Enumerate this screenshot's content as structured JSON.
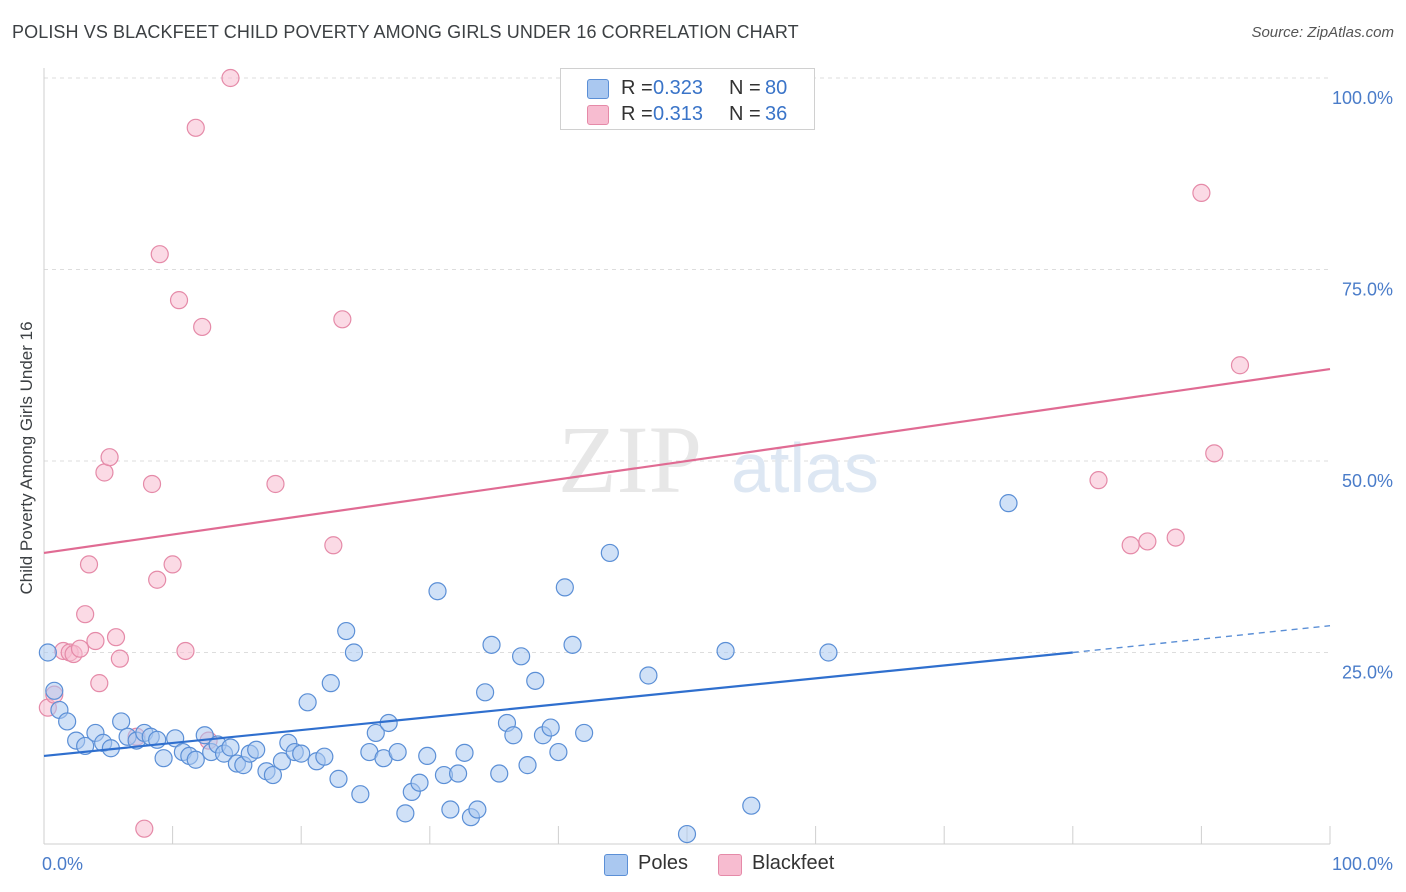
{
  "header": {
    "title": "POLISH VS BLACKFEET CHILD POVERTY AMONG GIRLS UNDER 16 CORRELATION CHART",
    "source": "Source: ZipAtlas.com"
  },
  "watermark": {
    "zip": "ZIP",
    "atlas": "atlas"
  },
  "legend": {
    "r_label": "R =",
    "n_label": "N =",
    "items": [
      {
        "r": "0.323",
        "n": "80"
      },
      {
        "r": "0.313",
        "n": "36"
      }
    ]
  },
  "colors": {
    "blue_fill": "#aac8f0",
    "blue_stroke": "#5b8fd6",
    "blue_line": "#2f6fce",
    "pink_fill": "#f7bcd0",
    "pink_stroke": "#e58aa8",
    "pink_line": "#e06b93",
    "tick_label": "#4a7cc9",
    "grid": "#dddddd"
  },
  "chart_data": {
    "type": "scatter",
    "title": "POLISH VS BLACKFEET CHILD POVERTY AMONG GIRLS UNDER 16 CORRELATION CHART",
    "xlabel": "",
    "ylabel": "Child Poverty Among Girls Under 16",
    "xlim": [
      0,
      100
    ],
    "ylim": [
      0,
      100
    ],
    "x_tick_labels": [
      "0.0%",
      "100.0%"
    ],
    "y_ticks": [
      25,
      50,
      75,
      100
    ],
    "y_tick_labels": [
      "25.0%",
      "50.0%",
      "75.0%",
      "100.0%"
    ],
    "grid": true,
    "legend_position": "top-center",
    "series": [
      {
        "name": "Poles",
        "r": 0.323,
        "n": 80,
        "trend": {
          "x0": 0,
          "y0": 11.5,
          "x1": 80,
          "y1": 25.0,
          "dashed_to_x": 100,
          "dashed_to_y": 28.5
        },
        "points": [
          [
            0.3,
            25.0
          ],
          [
            0.8,
            20.0
          ],
          [
            1.2,
            17.5
          ],
          [
            1.8,
            16.0
          ],
          [
            2.5,
            13.5
          ],
          [
            3.2,
            12.8
          ],
          [
            4.0,
            14.5
          ],
          [
            4.6,
            13.2
          ],
          [
            5.2,
            12.5
          ],
          [
            6.0,
            16.0
          ],
          [
            6.5,
            14.0
          ],
          [
            7.2,
            13.5
          ],
          [
            7.8,
            14.5
          ],
          [
            8.3,
            14.0
          ],
          [
            8.8,
            13.6
          ],
          [
            9.3,
            11.2
          ],
          [
            10.2,
            13.8
          ],
          [
            10.8,
            12.0
          ],
          [
            11.3,
            11.5
          ],
          [
            11.8,
            11.0
          ],
          [
            12.5,
            14.2
          ],
          [
            13.0,
            12.0
          ],
          [
            13.5,
            13.0
          ],
          [
            14.0,
            11.8
          ],
          [
            14.5,
            12.6
          ],
          [
            15.0,
            10.5
          ],
          [
            15.5,
            10.3
          ],
          [
            16.0,
            11.8
          ],
          [
            16.5,
            12.3
          ],
          [
            17.3,
            9.5
          ],
          [
            17.8,
            9.0
          ],
          [
            18.5,
            10.8
          ],
          [
            19.0,
            13.2
          ],
          [
            19.5,
            12.0
          ],
          [
            20.0,
            11.8
          ],
          [
            20.5,
            18.5
          ],
          [
            21.2,
            10.8
          ],
          [
            21.8,
            11.4
          ],
          [
            22.3,
            21.0
          ],
          [
            22.9,
            8.5
          ],
          [
            23.5,
            27.8
          ],
          [
            24.1,
            25.0
          ],
          [
            24.6,
            6.5
          ],
          [
            25.3,
            12.0
          ],
          [
            25.8,
            14.5
          ],
          [
            26.4,
            11.2
          ],
          [
            26.8,
            15.8
          ],
          [
            27.5,
            12.0
          ],
          [
            28.1,
            4.0
          ],
          [
            28.6,
            6.8
          ],
          [
            29.2,
            8.0
          ],
          [
            29.8,
            11.5
          ],
          [
            30.6,
            33.0
          ],
          [
            31.1,
            9.0
          ],
          [
            31.6,
            4.5
          ],
          [
            32.2,
            9.2
          ],
          [
            32.7,
            11.9
          ],
          [
            33.2,
            3.5
          ],
          [
            33.7,
            4.5
          ],
          [
            34.3,
            19.8
          ],
          [
            34.8,
            26.0
          ],
          [
            35.4,
            9.2
          ],
          [
            36.0,
            15.8
          ],
          [
            36.5,
            14.2
          ],
          [
            37.1,
            24.5
          ],
          [
            37.6,
            10.3
          ],
          [
            38.2,
            21.3
          ],
          [
            38.8,
            14.2
          ],
          [
            39.4,
            15.2
          ],
          [
            40.0,
            12.0
          ],
          [
            40.5,
            33.5
          ],
          [
            41.1,
            26.0
          ],
          [
            42.0,
            14.5
          ],
          [
            44.0,
            38.0
          ],
          [
            47.0,
            22.0
          ],
          [
            50.0,
            1.3
          ],
          [
            53.0,
            25.2
          ],
          [
            55.0,
            5.0
          ],
          [
            61.0,
            25.0
          ],
          [
            75.0,
            44.5
          ]
        ]
      },
      {
        "name": "Blackfeet",
        "r": 0.313,
        "n": 36,
        "trend": {
          "x0": 0,
          "y0": 38.0,
          "x1": 100,
          "y1": 62.0
        },
        "points": [
          [
            0.3,
            17.8
          ],
          [
            0.8,
            19.5
          ],
          [
            1.5,
            25.2
          ],
          [
            2.0,
            25.0
          ],
          [
            2.3,
            24.8
          ],
          [
            2.8,
            25.5
          ],
          [
            3.2,
            30.0
          ],
          [
            3.5,
            36.5
          ],
          [
            4.0,
            26.5
          ],
          [
            4.3,
            21.0
          ],
          [
            4.7,
            48.5
          ],
          [
            5.1,
            50.5
          ],
          [
            5.6,
            27.0
          ],
          [
            5.9,
            24.2
          ],
          [
            7.2,
            14.0
          ],
          [
            7.8,
            2.0
          ],
          [
            8.4,
            47.0
          ],
          [
            8.8,
            34.5
          ],
          [
            9.0,
            77.0
          ],
          [
            10.0,
            36.5
          ],
          [
            10.5,
            71.0
          ],
          [
            11.0,
            25.2
          ],
          [
            11.8,
            93.5
          ],
          [
            12.3,
            67.5
          ],
          [
            14.5,
            100.0
          ],
          [
            18.0,
            47.0
          ],
          [
            22.5,
            39.0
          ],
          [
            23.2,
            68.5
          ],
          [
            82.0,
            47.5
          ],
          [
            84.5,
            39.0
          ],
          [
            85.8,
            39.5
          ],
          [
            88.0,
            40.0
          ],
          [
            90.0,
            85.0
          ],
          [
            91.0,
            51.0
          ],
          [
            93.0,
            62.5
          ],
          [
            12.8,
            13.5
          ]
        ]
      }
    ]
  }
}
